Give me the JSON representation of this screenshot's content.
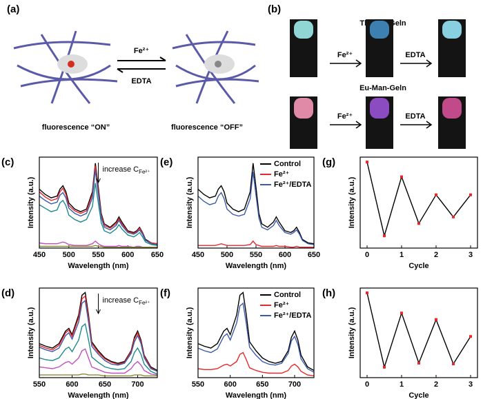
{
  "panel_a": {
    "label": "(a)",
    "forward": "Fe²⁺",
    "backward": "EDTA",
    "left_caption": "fluorescence “ON”",
    "right_caption": "fluorescence “OFF”"
  },
  "panel_b": {
    "label": "(b)",
    "rows": [
      {
        "title": "Tb-Man-Geln",
        "step1": "Fe²⁺",
        "step2": "EDTA"
      },
      {
        "title": "Eu-Man-Geln",
        "step1": "Fe²⁺",
        "step2": "EDTA"
      }
    ]
  },
  "chart_data": [
    {
      "type": "line",
      "label": "(c)",
      "x_label": "Wavelength (nm)",
      "y_label": "Intensity (a.u.)",
      "annotation": "increase C",
      "annotation_sub": "Fe²⁺",
      "x": [
        450,
        460,
        470,
        480,
        485,
        490,
        495,
        500,
        510,
        520,
        530,
        540,
        545,
        550,
        555,
        560,
        570,
        580,
        585,
        590,
        600,
        610,
        615,
        620,
        625,
        630,
        640,
        650
      ],
      "xlim": [
        450,
        650
      ],
      "xticks": [
        450,
        500,
        550,
        600,
        650
      ],
      "ylim": [
        0,
        105
      ],
      "series": [
        {
          "color": "#000000",
          "values": [
            68,
            62,
            58,
            60,
            68,
            72,
            65,
            52,
            45,
            42,
            45,
            65,
            98,
            70,
            40,
            28,
            24,
            30,
            36,
            30,
            20,
            18,
            20,
            24,
            18,
            10,
            6,
            5
          ]
        },
        {
          "color": "#e8262b",
          "values": [
            65,
            59,
            55,
            57,
            65,
            69,
            62,
            49,
            43,
            40,
            43,
            62,
            95,
            66,
            38,
            26,
            23,
            28,
            34,
            28,
            19,
            17,
            19,
            23,
            17,
            9,
            6,
            5
          ]
        },
        {
          "color": "#3b5ba8",
          "values": [
            60,
            55,
            51,
            53,
            61,
            64,
            58,
            46,
            40,
            37,
            40,
            58,
            90,
            62,
            35,
            24,
            21,
            26,
            32,
            26,
            18,
            16,
            18,
            21,
            16,
            9,
            5,
            4
          ]
        },
        {
          "color": "#1d8a8a",
          "values": [
            50,
            46,
            42,
            44,
            52,
            55,
            49,
            38,
            33,
            30,
            33,
            48,
            75,
            52,
            29,
            20,
            17,
            22,
            27,
            22,
            15,
            13,
            15,
            18,
            13,
            7,
            4,
            3
          ]
        },
        {
          "color": "#c04fc0",
          "values": [
            6,
            5,
            5,
            5,
            6,
            7,
            6,
            4,
            3,
            3,
            3,
            5,
            8,
            5,
            3,
            2,
            2,
            2,
            3,
            2,
            2,
            1,
            2,
            2,
            1,
            1,
            1,
            1
          ]
        },
        {
          "color": "#8a8a30",
          "values": [
            2,
            2,
            2,
            2,
            2,
            2,
            2,
            2,
            2,
            2,
            2,
            2,
            3,
            2,
            2,
            1,
            1,
            1,
            1,
            1,
            1,
            1,
            1,
            1,
            1,
            1,
            1,
            1
          ]
        }
      ]
    },
    {
      "type": "line",
      "label": "(e)",
      "x_label": "Wavelength (nm)",
      "y_label": "Intensity (a.u.)",
      "x": [
        450,
        460,
        470,
        480,
        485,
        490,
        495,
        500,
        510,
        520,
        530,
        540,
        545,
        550,
        555,
        560,
        570,
        580,
        585,
        590,
        600,
        610,
        615,
        620,
        625,
        630,
        640,
        650
      ],
      "xlim": [
        450,
        650
      ],
      "xticks": [
        450,
        500,
        550,
        600,
        650
      ],
      "ylim": [
        0,
        105
      ],
      "legend": "upper right",
      "series": [
        {
          "name": "Control",
          "color": "#000000",
          "values": [
            68,
            62,
            58,
            60,
            68,
            72,
            65,
            52,
            45,
            42,
            45,
            65,
            98,
            70,
            40,
            28,
            24,
            30,
            36,
            30,
            20,
            18,
            20,
            24,
            18,
            10,
            6,
            5
          ]
        },
        {
          "name": "Fe²⁺",
          "color": "#e8262b",
          "values": [
            3,
            3,
            3,
            3,
            4,
            5,
            4,
            3,
            3,
            3,
            3,
            4,
            8,
            4,
            3,
            2,
            2,
            2,
            3,
            2,
            2,
            1,
            1,
            2,
            1,
            1,
            1,
            1
          ]
        },
        {
          "name": "Fe²⁺/EDTA",
          "color": "#3b5ba8",
          "values": [
            60,
            54,
            50,
            52,
            60,
            64,
            57,
            45,
            39,
            37,
            39,
            57,
            88,
            61,
            35,
            24,
            21,
            26,
            32,
            26,
            18,
            16,
            18,
            21,
            16,
            9,
            5,
            4
          ]
        }
      ]
    },
    {
      "type": "line",
      "label": "(g)",
      "x_label": "Cycle",
      "y_label": "Intensity (a.u.)",
      "x": [
        0,
        0.5,
        1,
        1.5,
        2,
        2.5,
        3
      ],
      "values": [
        100,
        10,
        82,
        25,
        60,
        33,
        60
      ],
      "color": "#000000",
      "marker_color": "#e8262b",
      "xlim": [
        -0.2,
        3.2
      ],
      "xticks": [
        0,
        1,
        2,
        3
      ],
      "ylim": [
        -5,
        106
      ]
    },
    {
      "type": "line",
      "label": "(d)",
      "x_label": "Wavelength (nm)",
      "y_label": "Intensity (a.u.)",
      "annotation": "increase C",
      "annotation_sub": "Fe²⁺",
      "x": [
        550,
        560,
        570,
        580,
        590,
        595,
        600,
        610,
        615,
        620,
        625,
        630,
        640,
        650,
        660,
        670,
        680,
        690,
        695,
        700,
        705,
        710,
        720,
        730
      ],
      "xlim": [
        550,
        730
      ],
      "xticks": [
        550,
        600,
        650,
        700
      ],
      "ylim": [
        0,
        100
      ],
      "series": [
        {
          "color": "#000000",
          "values": [
            38,
            35,
            33,
            38,
            52,
            55,
            48,
            70,
            92,
            95,
            70,
            40,
            30,
            22,
            18,
            16,
            18,
            30,
            45,
            52,
            42,
            25,
            12,
            8
          ]
        },
        {
          "color": "#e8262b",
          "values": [
            36,
            33,
            31,
            36,
            50,
            53,
            46,
            67,
            88,
            91,
            67,
            38,
            28,
            21,
            17,
            15,
            17,
            29,
            43,
            50,
            40,
            24,
            11,
            7
          ]
        },
        {
          "color": "#3b5ba8",
          "values": [
            34,
            31,
            29,
            33,
            47,
            50,
            43,
            62,
            83,
            86,
            62,
            35,
            26,
            19,
            15,
            14,
            16,
            27,
            40,
            47,
            38,
            22,
            10,
            7
          ]
        },
        {
          "color": "#1d8a8a",
          "values": [
            22,
            20,
            19,
            22,
            32,
            34,
            29,
            42,
            57,
            60,
            42,
            23,
            17,
            12,
            10,
            9,
            10,
            18,
            28,
            33,
            26,
            15,
            7,
            4
          ]
        },
        {
          "color": "#c04fc0",
          "values": [
            12,
            11,
            10,
            12,
            17,
            18,
            15,
            22,
            30,
            32,
            22,
            12,
            9,
            6,
            5,
            5,
            5,
            10,
            15,
            18,
            14,
            8,
            4,
            3
          ]
        },
        {
          "color": "#8a8a30",
          "values": [
            3,
            3,
            3,
            3,
            3,
            3,
            3,
            3,
            4,
            4,
            3,
            3,
            3,
            2,
            2,
            2,
            2,
            2,
            3,
            3,
            3,
            2,
            2,
            2
          ]
        }
      ]
    },
    {
      "type": "line",
      "label": "(f)",
      "x_label": "Wavelength (nm)",
      "y_label": "Intensity (a.u.)",
      "x": [
        550,
        560,
        570,
        580,
        590,
        595,
        600,
        610,
        615,
        620,
        625,
        630,
        640,
        650,
        660,
        670,
        680,
        690,
        695,
        700,
        705,
        710,
        720,
        730
      ],
      "xlim": [
        550,
        730
      ],
      "xticks": [
        550,
        600,
        650,
        700
      ],
      "ylim": [
        0,
        100
      ],
      "legend": "upper right",
      "series": [
        {
          "name": "Control",
          "color": "#000000",
          "values": [
            38,
            35,
            33,
            38,
            52,
            55,
            48,
            70,
            92,
            95,
            70,
            40,
            30,
            22,
            18,
            16,
            18,
            30,
            45,
            52,
            42,
            25,
            12,
            8
          ]
        },
        {
          "name": "Fe²⁺",
          "color": "#e8262b",
          "values": [
            10,
            9,
            9,
            10,
            14,
            15,
            13,
            18,
            26,
            28,
            20,
            11,
            8,
            6,
            5,
            5,
            5,
            8,
            13,
            15,
            12,
            7,
            3,
            2
          ]
        },
        {
          "name": "Fe²⁺/EDTA",
          "color": "#3b5ba8",
          "values": [
            33,
            30,
            28,
            32,
            46,
            49,
            42,
            61,
            80,
            83,
            60,
            34,
            25,
            18,
            15,
            14,
            16,
            27,
            41,
            46,
            37,
            21,
            10,
            6
          ]
        }
      ]
    },
    {
      "type": "line",
      "label": "(h)",
      "x_label": "Cycle",
      "y_label": "Intensity (a.u.)",
      "x": [
        0,
        0.5,
        1,
        1.5,
        2,
        2.5,
        3
      ],
      "values": [
        100,
        8,
        75,
        13,
        67,
        12,
        46
      ],
      "color": "#000000",
      "marker_color": "#e8262b",
      "xlim": [
        -0.2,
        3.2
      ],
      "xticks": [
        0,
        1,
        2,
        3
      ],
      "ylim": [
        -5,
        106
      ]
    }
  ]
}
